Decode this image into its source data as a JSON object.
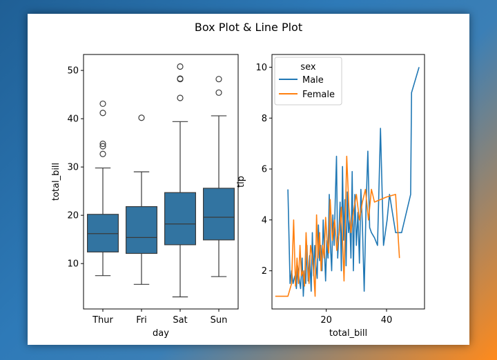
{
  "figure": {
    "title": "Box Plot & Line Plot"
  },
  "colors": {
    "box_fill": "#3274a1",
    "male": "#1f77b4",
    "female": "#ff7f0e",
    "box_edge": "#3a3a3a"
  },
  "chart_data": [
    {
      "type": "box",
      "xlabel": "day",
      "ylabel": "total_bill",
      "categories": [
        "Thur",
        "Fri",
        "Sat",
        "Sun"
      ],
      "ylim": [
        0.6,
        53.3
      ],
      "yticks": [
        10,
        20,
        30,
        40,
        50
      ],
      "boxes": [
        {
          "category": "Thur",
          "min": 7.5,
          "q1": 12.4,
          "median": 16.2,
          "q3": 20.2,
          "max": 29.8,
          "outliers": [
            32.7,
            34.3,
            34.8,
            41.2,
            43.1
          ]
        },
        {
          "category": "Fri",
          "min": 5.7,
          "q1": 12.1,
          "median": 15.4,
          "q3": 21.8,
          "max": 29.0,
          "outliers": [
            40.2
          ]
        },
        {
          "category": "Sat",
          "min": 3.1,
          "q1": 13.9,
          "median": 18.2,
          "q3": 24.7,
          "max": 39.4,
          "outliers": [
            44.3,
            48.2,
            48.3,
            50.8
          ]
        },
        {
          "category": "Sun",
          "min": 7.3,
          "q1": 14.9,
          "median": 19.6,
          "q3": 25.6,
          "max": 40.6,
          "outliers": [
            45.4,
            48.2
          ]
        }
      ]
    },
    {
      "type": "line",
      "xlabel": "total_bill",
      "ylabel": "tip",
      "xlim": [
        2.0,
        52.6
      ],
      "ylim": [
        0.5,
        10.5
      ],
      "xticks": [
        20,
        40
      ],
      "yticks": [
        2,
        4,
        6,
        8,
        10
      ],
      "legend": {
        "title": "sex",
        "position": "upper-left"
      },
      "series": [
        {
          "name": "Male",
          "x": [
            7.3,
            8.0,
            8.5,
            9.0,
            9.6,
            10.1,
            10.5,
            11.0,
            11.5,
            12.0,
            12.4,
            12.8,
            13.2,
            13.6,
            14.0,
            14.5,
            15.0,
            15.4,
            15.8,
            16.2,
            16.6,
            17.0,
            17.4,
            17.8,
            18.2,
            18.6,
            19.0,
            19.4,
            19.8,
            20.2,
            20.6,
            21.0,
            21.4,
            21.8,
            22.2,
            22.6,
            23.0,
            23.4,
            23.8,
            24.2,
            24.6,
            25.0,
            25.4,
            25.8,
            26.2,
            26.6,
            27.0,
            27.4,
            27.8,
            28.2,
            28.6,
            29.0,
            29.5,
            30.0,
            30.5,
            31.0,
            31.5,
            32.0,
            32.6,
            33.2,
            33.8,
            34.4,
            35.0,
            36.0,
            37.0,
            38.0,
            39.0,
            40.2,
            41.0,
            43.0,
            45.0,
            48.0,
            48.3,
            50.8
          ],
          "y": [
            5.2,
            1.5,
            2.0,
            1.5,
            1.8,
            1.3,
            2.2,
            1.7,
            1.3,
            2.5,
            1.0,
            2.0,
            1.5,
            3.0,
            1.6,
            2.6,
            1.2,
            3.5,
            1.8,
            3.0,
            2.2,
            1.7,
            3.8,
            2.4,
            3.0,
            2.0,
            4.0,
            2.8,
            1.6,
            3.2,
            2.5,
            5.0,
            3.0,
            2.0,
            4.2,
            3.0,
            4.8,
            6.5,
            2.5,
            3.5,
            4.7,
            2.0,
            6.1,
            3.2,
            4.8,
            2.2,
            5.1,
            3.5,
            4.0,
            2.5,
            5.9,
            2.0,
            5.0,
            3.0,
            4.3,
            2.3,
            5.2,
            3.8,
            1.2,
            4.5,
            6.7,
            3.7,
            3.5,
            3.3,
            3.0,
            7.6,
            3.0,
            4.0,
            5.0,
            3.5,
            3.5,
            5.0,
            9.0,
            10.0
          ]
        },
        {
          "name": "Female",
          "x": [
            3.1,
            7.3,
            8.5,
            9.2,
            9.8,
            10.3,
            10.8,
            11.3,
            11.8,
            12.3,
            12.8,
            13.3,
            13.8,
            14.3,
            14.8,
            15.3,
            15.8,
            16.3,
            16.8,
            17.3,
            17.8,
            18.3,
            18.8,
            19.3,
            19.8,
            20.3,
            20.8,
            21.3,
            22.0,
            22.8,
            23.5,
            24.3,
            25.0,
            25.9,
            26.8,
            27.5,
            28.2,
            29.0,
            30.0,
            31.0,
            32.0,
            33.0,
            34.0,
            35.0,
            36.0,
            40.0,
            43.0,
            44.3
          ],
          "y": [
            1.0,
            1.0,
            1.5,
            4.0,
            1.4,
            2.5,
            1.5,
            3.0,
            1.8,
            2.0,
            1.4,
            3.5,
            2.3,
            1.5,
            3.0,
            2.6,
            2.0,
            1.0,
            4.2,
            2.5,
            3.5,
            2.0,
            3.0,
            2.5,
            4.1,
            3.2,
            2.7,
            4.8,
            3.2,
            4.0,
            2.8,
            3.5,
            4.5,
            1.6,
            6.5,
            4.5,
            3.5,
            4.3,
            5.0,
            4.0,
            4.7,
            5.2,
            4.0,
            5.2,
            4.7,
            4.9,
            5.0,
            2.5
          ]
        }
      ]
    }
  ]
}
